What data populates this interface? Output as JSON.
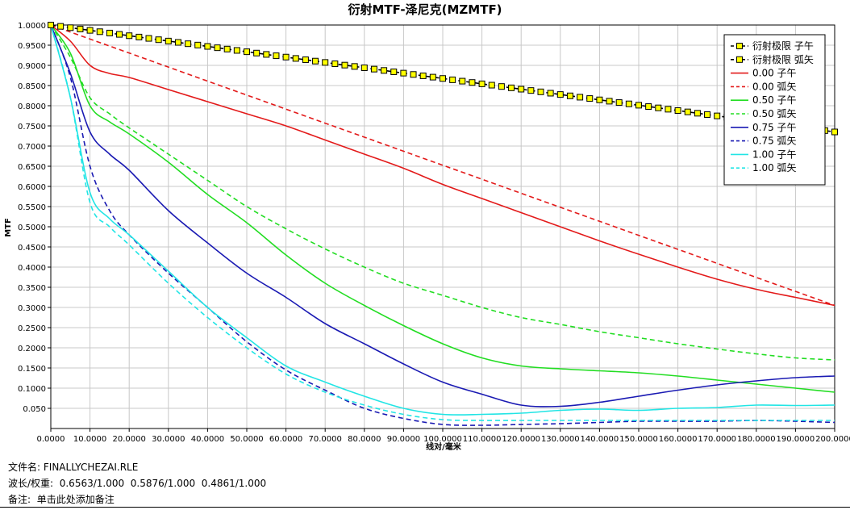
{
  "chart_data": {
    "type": "line",
    "title": "衍射MTF-泽尼克(MZMTF)",
    "xlabel": "线对/毫米",
    "ylabel": "MTF",
    "xlim": [
      0,
      200
    ],
    "ylim": [
      0,
      1
    ],
    "grid": true,
    "legend_position": "top-right",
    "xticks": [
      "0.0000",
      "10.0000",
      "20.0000",
      "30.0000",
      "40.0000",
      "50.0000",
      "60.0000",
      "70.0000",
      "80.0000",
      "90.0000",
      "100.0000",
      "110.0000",
      "120.0000",
      "130.0000",
      "140.0000",
      "150.0000",
      "160.0000",
      "170.0000",
      "180.0000",
      "190.0000",
      "200.0000"
    ],
    "yticks": [
      "0.050",
      "0.1000",
      "0.1500",
      "0.2000",
      "0.2500",
      "0.3000",
      "0.3500",
      "0.4000",
      "0.4500",
      "0.5000",
      "0.5500",
      "0.6000",
      "0.6500",
      "0.7000",
      "0.7500",
      "0.8000",
      "0.8500",
      "0.9000",
      "0.9500",
      "1.0000"
    ],
    "ytick_values": [
      0.05,
      0.1,
      0.15,
      0.2,
      0.25,
      0.3,
      0.35,
      0.4,
      0.45,
      0.5,
      0.55,
      0.6,
      0.65,
      0.7,
      0.75,
      0.8,
      0.85,
      0.9,
      0.95,
      1.0
    ],
    "series": [
      {
        "name": "衍射极限 子午",
        "color": "#000000",
        "dash": "dash",
        "marker": "square",
        "marker_color": "#ffff00",
        "x": [
          0,
          200
        ],
        "y": [
          1.0,
          0.735
        ]
      },
      {
        "name": "衍射极限 弧矢",
        "color": "#000000",
        "dash": "dash",
        "marker": "square",
        "marker_color": "#ffff00",
        "x": [
          0,
          200
        ],
        "y": [
          1.0,
          0.735
        ]
      },
      {
        "name": "0.00 子午",
        "color": "#e31a1a",
        "dash": "solid",
        "x": [
          0,
          5,
          10,
          15,
          20,
          30,
          40,
          50,
          60,
          70,
          80,
          90,
          100,
          110,
          120,
          130,
          140,
          150,
          160,
          170,
          180,
          190,
          200
        ],
        "y": [
          1.0,
          0.96,
          0.9,
          0.88,
          0.87,
          0.84,
          0.81,
          0.78,
          0.75,
          0.715,
          0.68,
          0.645,
          0.605,
          0.57,
          0.535,
          0.5,
          0.465,
          0.432,
          0.4,
          0.37,
          0.345,
          0.325,
          0.305
        ]
      },
      {
        "name": "0.00 弧矢",
        "color": "#e31a1a",
        "dash": "dash",
        "x": [
          0,
          200
        ],
        "y": [
          1.0,
          0.305
        ]
      },
      {
        "name": "0.50 子午",
        "color": "#22dd22",
        "dash": "solid",
        "x": [
          0,
          5,
          10,
          15,
          20,
          30,
          40,
          50,
          60,
          70,
          80,
          90,
          100,
          110,
          120,
          130,
          140,
          150,
          160,
          170,
          180,
          190,
          200
        ],
        "y": [
          1.0,
          0.93,
          0.8,
          0.76,
          0.73,
          0.66,
          0.58,
          0.51,
          0.43,
          0.36,
          0.305,
          0.255,
          0.21,
          0.175,
          0.155,
          0.148,
          0.143,
          0.138,
          0.13,
          0.12,
          0.11,
          0.1,
          0.09
        ]
      },
      {
        "name": "0.50 弧矢",
        "color": "#22dd22",
        "dash": "dash",
        "x": [
          0,
          5,
          10,
          15,
          20,
          30,
          40,
          50,
          60,
          70,
          80,
          90,
          100,
          110,
          120,
          130,
          140,
          150,
          160,
          170,
          180,
          190,
          200
        ],
        "y": [
          1.0,
          0.92,
          0.82,
          0.78,
          0.745,
          0.68,
          0.615,
          0.55,
          0.495,
          0.445,
          0.4,
          0.36,
          0.33,
          0.3,
          0.275,
          0.258,
          0.24,
          0.225,
          0.21,
          0.197,
          0.185,
          0.175,
          0.17
        ]
      },
      {
        "name": "0.75 子午",
        "color": "#1a1ab3",
        "dash": "solid",
        "x": [
          0,
          5,
          10,
          15,
          20,
          30,
          40,
          50,
          60,
          70,
          80,
          90,
          100,
          110,
          120,
          130,
          140,
          150,
          160,
          170,
          180,
          190,
          200
        ],
        "y": [
          1.0,
          0.88,
          0.735,
          0.68,
          0.64,
          0.54,
          0.46,
          0.385,
          0.325,
          0.26,
          0.21,
          0.16,
          0.115,
          0.085,
          0.058,
          0.055,
          0.065,
          0.08,
          0.095,
          0.108,
          0.118,
          0.126,
          0.13
        ]
      },
      {
        "name": "0.75 弧矢",
        "color": "#1a1ab3",
        "dash": "dash",
        "x": [
          0,
          5,
          10,
          15,
          20,
          30,
          40,
          50,
          60,
          70,
          80,
          90,
          100,
          110,
          120,
          130,
          140,
          150,
          160,
          170,
          180,
          190,
          200
        ],
        "y": [
          1.0,
          0.87,
          0.65,
          0.54,
          0.48,
          0.385,
          0.3,
          0.215,
          0.145,
          0.095,
          0.05,
          0.025,
          0.01,
          0.008,
          0.01,
          0.012,
          0.015,
          0.018,
          0.018,
          0.018,
          0.02,
          0.018,
          0.015
        ]
      },
      {
        "name": "1.00 子午",
        "color": "#22e5e5",
        "dash": "solid",
        "x": [
          0,
          5,
          10,
          15,
          20,
          30,
          40,
          50,
          60,
          70,
          80,
          90,
          100,
          110,
          120,
          130,
          140,
          150,
          160,
          170,
          180,
          190,
          200
        ],
        "y": [
          1.0,
          0.82,
          0.585,
          0.52,
          0.48,
          0.39,
          0.3,
          0.225,
          0.155,
          0.115,
          0.08,
          0.05,
          0.035,
          0.035,
          0.038,
          0.045,
          0.048,
          0.045,
          0.05,
          0.052,
          0.058,
          0.057,
          0.058
        ]
      },
      {
        "name": "1.00 弧矢",
        "color": "#22e5e5",
        "dash": "dash",
        "x": [
          0,
          5,
          10,
          15,
          20,
          30,
          40,
          50,
          60,
          70,
          80,
          90,
          100,
          110,
          120,
          130,
          140,
          150,
          160,
          170,
          180,
          190,
          200
        ],
        "y": [
          1.0,
          0.82,
          0.56,
          0.5,
          0.455,
          0.36,
          0.275,
          0.2,
          0.135,
          0.09,
          0.058,
          0.035,
          0.022,
          0.02,
          0.02,
          0.02,
          0.02,
          0.02,
          0.02,
          0.02,
          0.02,
          0.02,
          0.02
        ]
      }
    ]
  },
  "footer": {
    "file_label": "文件名:",
    "file_value": "FINALLYCHEZAI.RLE",
    "wavelength_label": "波长/权重:",
    "wavelength_value": "0.6563/1.000  0.5876/1.000  0.4861/1.000",
    "note_label": "备注:",
    "note_value": "单击此处添加备注"
  }
}
